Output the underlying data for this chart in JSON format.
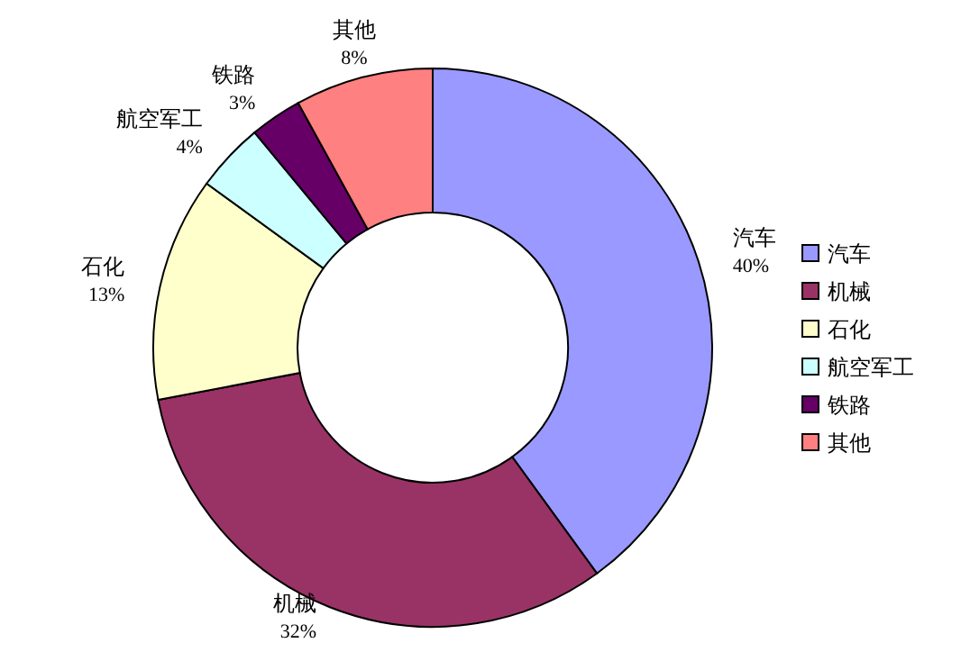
{
  "chart_data": {
    "type": "donut",
    "categories": [
      "汽车",
      "机械",
      "石化",
      "航空军工",
      "铁路",
      "其他"
    ],
    "values": [
      40,
      32,
      13,
      4,
      3,
      8
    ],
    "value_labels": [
      "40%",
      "32%",
      "13%",
      "4%",
      "3%",
      "8%"
    ],
    "colors": [
      "#9999ff",
      "#993366",
      "#ffffcc",
      "#ccffff",
      "#660066",
      "#ff8080"
    ],
    "legend": "right"
  }
}
